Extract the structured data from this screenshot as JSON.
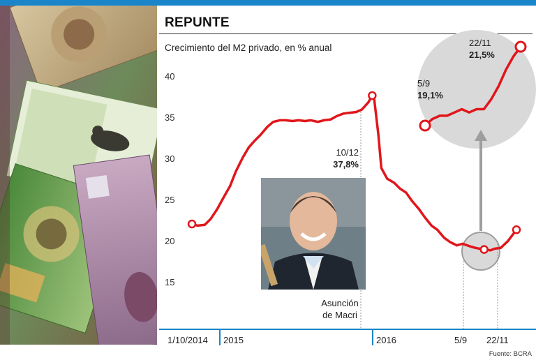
{
  "header": {
    "title": "REPUNTE",
    "subtitle": "Crecimiento del M2 privado, en % anual"
  },
  "source": "Fuente: BCRA",
  "colors": {
    "line": "#e0161b",
    "accent": "#1a86c9",
    "circle": "#d9d9d9"
  },
  "photo_caption": [
    "Asunción",
    "de Macri"
  ],
  "annotations": {
    "peak": {
      "date": "10/12",
      "value": "37,8%"
    },
    "low": {
      "date": "5/9",
      "value": "19,1%"
    },
    "end": {
      "date": "22/11",
      "value": "21,5%"
    }
  },
  "chart_data": {
    "type": "line",
    "title": "REPUNTE",
    "subtitle": "Crecimiento del M2 privado, en % anual",
    "ylim": [
      13,
      41
    ],
    "yticks": [
      15,
      20,
      25,
      30,
      35,
      40
    ],
    "xticks": [
      "1/10/2014",
      "2015",
      "2016",
      "5/9",
      "22/11"
    ],
    "x": [
      "2014-10-01",
      "2014-10-15",
      "2014-11-01",
      "2014-11-15",
      "2014-12-01",
      "2014-12-15",
      "2015-01-01",
      "2015-01-15",
      "2015-02-01",
      "2015-02-15",
      "2015-03-01",
      "2015-03-15",
      "2015-04-01",
      "2015-04-15",
      "2015-05-01",
      "2015-05-15",
      "2015-06-01",
      "2015-06-15",
      "2015-07-01",
      "2015-07-15",
      "2015-08-01",
      "2015-08-15",
      "2015-09-01",
      "2015-09-15",
      "2015-10-01",
      "2015-10-15",
      "2015-11-01",
      "2015-11-15",
      "2015-12-01",
      "2015-12-10",
      "2015-12-15",
      "2015-12-25",
      "2016-01-01",
      "2016-01-15",
      "2016-02-01",
      "2016-02-15",
      "2016-03-01",
      "2016-03-15",
      "2016-04-01",
      "2016-04-15",
      "2016-05-01",
      "2016-05-15",
      "2016-06-01",
      "2016-06-15",
      "2016-07-01",
      "2016-07-15",
      "2016-08-01",
      "2016-08-15",
      "2016-09-05",
      "2016-09-20",
      "2016-10-01",
      "2016-10-15",
      "2016-11-01",
      "2016-11-22"
    ],
    "y": [
      22.2,
      22.0,
      22.1,
      22.8,
      24.0,
      25.3,
      26.8,
      28.6,
      30.3,
      31.5,
      32.3,
      33.0,
      34.0,
      34.6,
      34.8,
      34.8,
      34.7,
      34.8,
      34.7,
      34.8,
      34.6,
      34.8,
      34.9,
      35.3,
      35.6,
      35.7,
      35.8,
      36.1,
      37.0,
      37.8,
      37.3,
      33.0,
      29.0,
      27.7,
      27.2,
      26.5,
      26.0,
      25.0,
      24.0,
      23.0,
      22.0,
      21.5,
      20.5,
      20.0,
      19.6,
      19.8,
      19.5,
      19.3,
      19.1,
      19.0,
      19.2,
      19.3,
      20.1,
      21.5
    ],
    "zoom": {
      "x": [
        "5/9",
        "",
        "",
        "",
        "",
        "",
        "",
        "",
        "",
        "",
        "",
        "",
        "",
        "22/11"
      ],
      "y": [
        19.1,
        19.3,
        19.4,
        19.4,
        19.5,
        19.6,
        19.5,
        19.6,
        19.6,
        19.9,
        20.3,
        20.8,
        21.2,
        21.5
      ]
    }
  }
}
